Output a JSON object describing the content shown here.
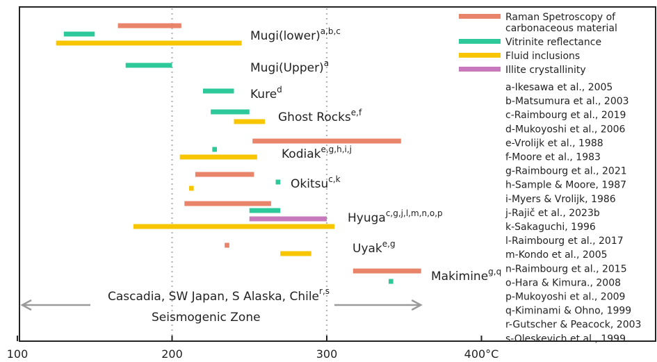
{
  "chart_data": {
    "type": "range-bar",
    "title": "",
    "xlabel": "",
    "ylabel": "",
    "xlim": [
      100,
      500
    ],
    "x_ticks": [
      "100",
      "200",
      "300",
      "400°C"
    ],
    "x_tick_values": [
      100,
      200,
      300,
      400
    ],
    "gridlines_x": [
      200,
      300
    ],
    "legend": [
      {
        "name_lines": [
          "Raman Spetroscopy of",
          "carbonaceous material"
        ],
        "color": "#e8846a",
        "key": "raman"
      },
      {
        "name_lines": [
          "Vitrinite reflectance"
        ],
        "color": "#2ec99a",
        "key": "vitrinite"
      },
      {
        "name_lines": [
          "Fluid inclusions"
        ],
        "color": "#f7c600",
        "key": "fluid"
      },
      {
        "name_lines": [
          "Illite crystallinity"
        ],
        "color": "#c879bd",
        "key": "illite"
      }
    ],
    "sites": [
      {
        "name": "Mugi(lower)",
        "refs": "a,b,c"
      },
      {
        "name": "Mugi(Upper)",
        "refs": "a"
      },
      {
        "name": "Kure",
        "refs": "d"
      },
      {
        "name": "Ghost Rocks",
        "refs": "e,f"
      },
      {
        "name": "Kodiak",
        "refs": "e,g,h,i,j"
      },
      {
        "name": "Okitsu",
        "refs": "c,k"
      },
      {
        "name": "Hyuga",
        "refs": "c,g,j,l,m,n,o,p"
      },
      {
        "name": "Uyak",
        "refs": "e,g"
      },
      {
        "name": "Makimine",
        "refs": "g,q"
      }
    ],
    "ranges": [
      {
        "site": "Mugi(lower)",
        "method": "raman",
        "from": 165,
        "to": 206
      },
      {
        "site": "Mugi(lower)",
        "method": "vitrinite",
        "from": 130,
        "to": 150
      },
      {
        "site": "Mugi(lower)",
        "method": "fluid",
        "from": 125,
        "to": 245
      },
      {
        "site": "Mugi(Upper)",
        "method": "vitrinite",
        "from": 170,
        "to": 200
      },
      {
        "site": "Kure",
        "method": "vitrinite",
        "from": 220,
        "to": 240
      },
      {
        "site": "Ghost Rocks",
        "method": "vitrinite",
        "from": 225,
        "to": 250
      },
      {
        "site": "Ghost Rocks",
        "method": "fluid",
        "from": 240,
        "to": 260
      },
      {
        "site": "Kodiak",
        "method": "raman",
        "from": 252,
        "to": 348
      },
      {
        "site": "Kodiak",
        "method": "vitrinite",
        "from": 226,
        "to": 229
      },
      {
        "site": "Kodiak",
        "method": "fluid",
        "from": 205,
        "to": 255
      },
      {
        "site": "Okitsu",
        "method": "raman",
        "from": 215,
        "to": 253
      },
      {
        "site": "Okitsu",
        "method": "vitrinite",
        "from": 267,
        "to": 270
      },
      {
        "site": "Okitsu",
        "method": "fluid",
        "from": 211,
        "to": 214
      },
      {
        "site": "Hyuga",
        "method": "raman",
        "from": 208,
        "to": 264
      },
      {
        "site": "Hyuga",
        "method": "vitrinite",
        "from": 250,
        "to": 270
      },
      {
        "site": "Hyuga",
        "method": "illite",
        "from": 250,
        "to": 300
      },
      {
        "site": "Hyuga",
        "method": "fluid",
        "from": 175,
        "to": 305
      },
      {
        "site": "Uyak",
        "method": "raman",
        "from": 234,
        "to": 237
      },
      {
        "site": "Uyak",
        "method": "fluid",
        "from": 270,
        "to": 290
      },
      {
        "site": "Makimine",
        "method": "raman",
        "from": 317,
        "to": 361
      },
      {
        "site": "Makimine",
        "method": "vitrinite",
        "from": 340,
        "to": 343
      }
    ],
    "seismogenic": {
      "line1": "Cascadia, SW Japan, S Alaska, Chile",
      "refs": "r,s",
      "line2": "Seismogenic Zone",
      "from": 100,
      "to": 350
    },
    "references": [
      "a-Ikesawa et al., 2005",
      "b-Matsumura et al., 2003",
      "c-Raimbourg et al., 2019",
      "d-Mukoyoshi et al., 2006",
      "e-Vrolijk et al., 1988",
      "f-Moore et al., 1983",
      "g-Raimbourg et al., 2021",
      "h-Sample & Moore, 1987",
      "i-Myers & Vrolijk, 1986",
      "j-Rajič et al., 2023b",
      "k-Sakaguchi, 1996",
      "l-Raimbourg et al., 2017",
      "m-Kondo et al., 2005",
      "n-Raimbourg et al., 2015",
      "o-Hara & Kimura., 2008",
      "p-Mukoyoshi et al., 2009",
      "q-Kiminami & Ohno, 1999",
      "r-Gutscher & Peacock, 2003",
      "s-Oleskevich et al., 1999"
    ]
  }
}
